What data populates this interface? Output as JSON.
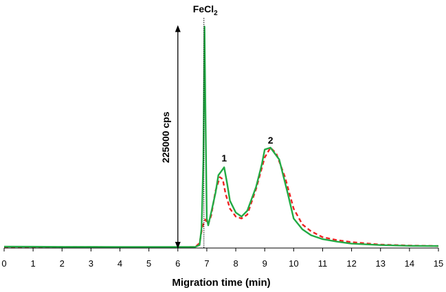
{
  "chart_data": {
    "type": "line",
    "title": "",
    "xlabel": "Migration time (min)",
    "ylabel": "",
    "xlim": [
      0,
      15
    ],
    "ylim": [
      0,
      245000
    ],
    "x_ticks": [
      "0",
      "1",
      "2",
      "3",
      "4",
      "5",
      "6",
      "7",
      "8",
      "9",
      "10",
      "11",
      "12",
      "13",
      "14",
      "15"
    ],
    "grid": false,
    "legend": "none",
    "colors": {
      "solid": "#22aa44",
      "dashed": "#ee2222",
      "axis": "#000000"
    },
    "series": [
      {
        "style": "solid",
        "x": [
          0,
          1,
          2,
          3,
          4,
          5,
          6,
          6.6,
          6.75,
          6.82,
          6.88,
          6.92,
          6.95,
          7.0,
          7.05,
          7.15,
          7.3,
          7.4,
          7.5,
          7.6,
          7.7,
          7.8,
          8.0,
          8.2,
          8.4,
          8.7,
          8.9,
          9.0,
          9.2,
          9.5,
          9.8,
          10.0,
          10.3,
          10.6,
          11.0,
          11.5,
          12.0,
          13.0,
          14.0,
          15.0
        ],
        "y": [
          1500,
          1300,
          1200,
          1200,
          1100,
          1100,
          1100,
          1200,
          3000,
          20000,
          90000,
          225000,
          150000,
          30000,
          23000,
          36000,
          56000,
          74000,
          78000,
          82000,
          66000,
          48000,
          36000,
          32000,
          38000,
          62000,
          85000,
          100000,
          102000,
          90000,
          55000,
          30000,
          19000,
          13000,
          9000,
          6500,
          4500,
          3000,
          2200,
          2000
        ]
      },
      {
        "style": "dashed",
        "x": [
          0,
          1,
          2,
          3,
          4,
          5,
          6,
          6.6,
          6.75,
          6.85,
          6.95,
          7.05,
          7.15,
          7.3,
          7.45,
          7.55,
          7.65,
          7.8,
          8.0,
          8.2,
          8.4,
          8.7,
          9.0,
          9.2,
          9.4,
          9.7,
          10.0,
          10.3,
          10.6,
          11.0,
          11.5,
          12.0,
          13.0,
          14.0,
          15.0
        ],
        "y": [
          1200,
          1100,
          1000,
          1000,
          900,
          900,
          900,
          1000,
          5000,
          22000,
          29000,
          24000,
          33000,
          58000,
          72000,
          70000,
          55000,
          40000,
          32000,
          30000,
          34000,
          60000,
          92000,
          102000,
          96000,
          72000,
          40000,
          24000,
          17000,
          11000,
          8000,
          6000,
          3500,
          2500,
          2000
        ]
      }
    ],
    "annotations": [
      {
        "text": "FeCl",
        "subscript": "2",
        "x": 6.9
      },
      {
        "text": "1",
        "x": 7.6,
        "y": 88000
      },
      {
        "text": "2",
        "x": 9.2,
        "y": 106000
      },
      {
        "text": "225000 cps",
        "x": 6.0,
        "y_from": 0,
        "y_to": 225000
      }
    ]
  }
}
